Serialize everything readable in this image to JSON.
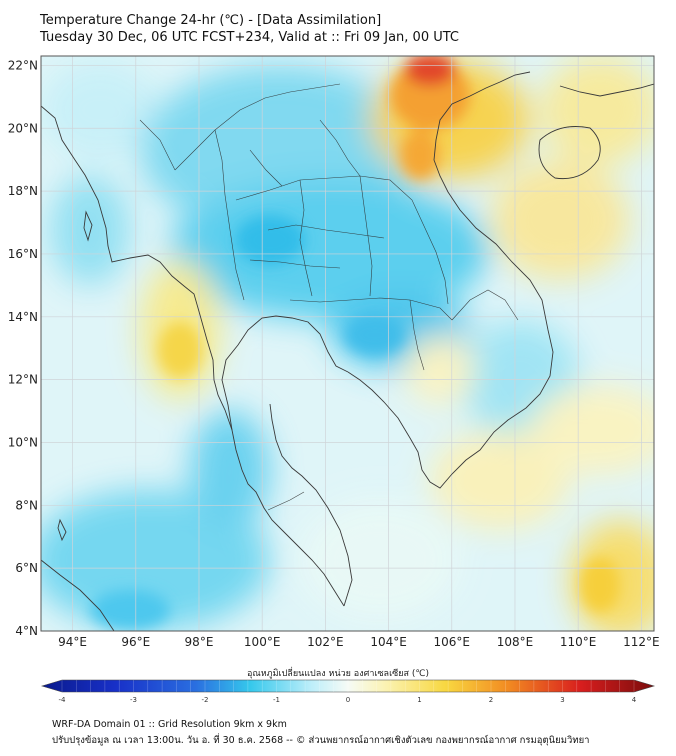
{
  "header": {
    "title_line1": "Temperature Change 24-hr (℃) - [Data Assimilation]",
    "title_line2": "Tuesday 30 Dec, 06 UTC FCST+234, Valid at :: Fri 09 Jan, 00 UTC"
  },
  "axes": {
    "lat_labels": [
      "22°N",
      "20°N",
      "18°N",
      "16°N",
      "14°N",
      "12°N",
      "10°N",
      "8°N",
      "6°N",
      "4°N"
    ],
    "lon_labels": [
      "94°E",
      "96°E",
      "98°E",
      "100°E",
      "102°E",
      "104°E",
      "106°E",
      "108°E",
      "110°E",
      "112°E"
    ],
    "lat_values": [
      22,
      20,
      18,
      16,
      14,
      12,
      10,
      8,
      6,
      4
    ],
    "lon_values": [
      94,
      96,
      98,
      100,
      102,
      104,
      106,
      108,
      110,
      112
    ],
    "lon_range": [
      93,
      112.4
    ],
    "lat_range": [
      4,
      22.3
    ]
  },
  "colorbar": {
    "title": "อุณหภูมิเปลี่ยนแปลง หน่วย องศาเซลเซียส (℃)",
    "tick_labels": [
      "-4",
      "-3",
      "-2",
      "-1",
      "0",
      "1",
      "2",
      "3",
      "4"
    ],
    "min": -4,
    "max": 4
  },
  "colors": {
    "cold_dark": "#0a1a8c",
    "cold_blue": "#2a6ee0",
    "cyan": "#35c8ec",
    "light_cyan": "#bdeefa",
    "neutral": "#f6fbf6",
    "light_yellow": "#fbf3b4",
    "yellow": "#f8d740",
    "orange": "#f28c22",
    "red": "#d81e1e",
    "dark_red": "#7a0c0c",
    "grid": "#cfd4d8",
    "coast": "#3a3a3a"
  },
  "footer": {
    "line1": "WRF-DA Domain 01 :: Grid Resolution 9km x 9km",
    "line2": "ปรับปรุงข้อมูล ณ เวลา 13:00น. วัน อ. ที่ 30 ธ.ค. 2568 -- © ส่วนพยากรณ์อากาศเชิงตัวเลข กองพยากรณ์อากาศ กรมอุตุนิยมวิทยา"
  }
}
